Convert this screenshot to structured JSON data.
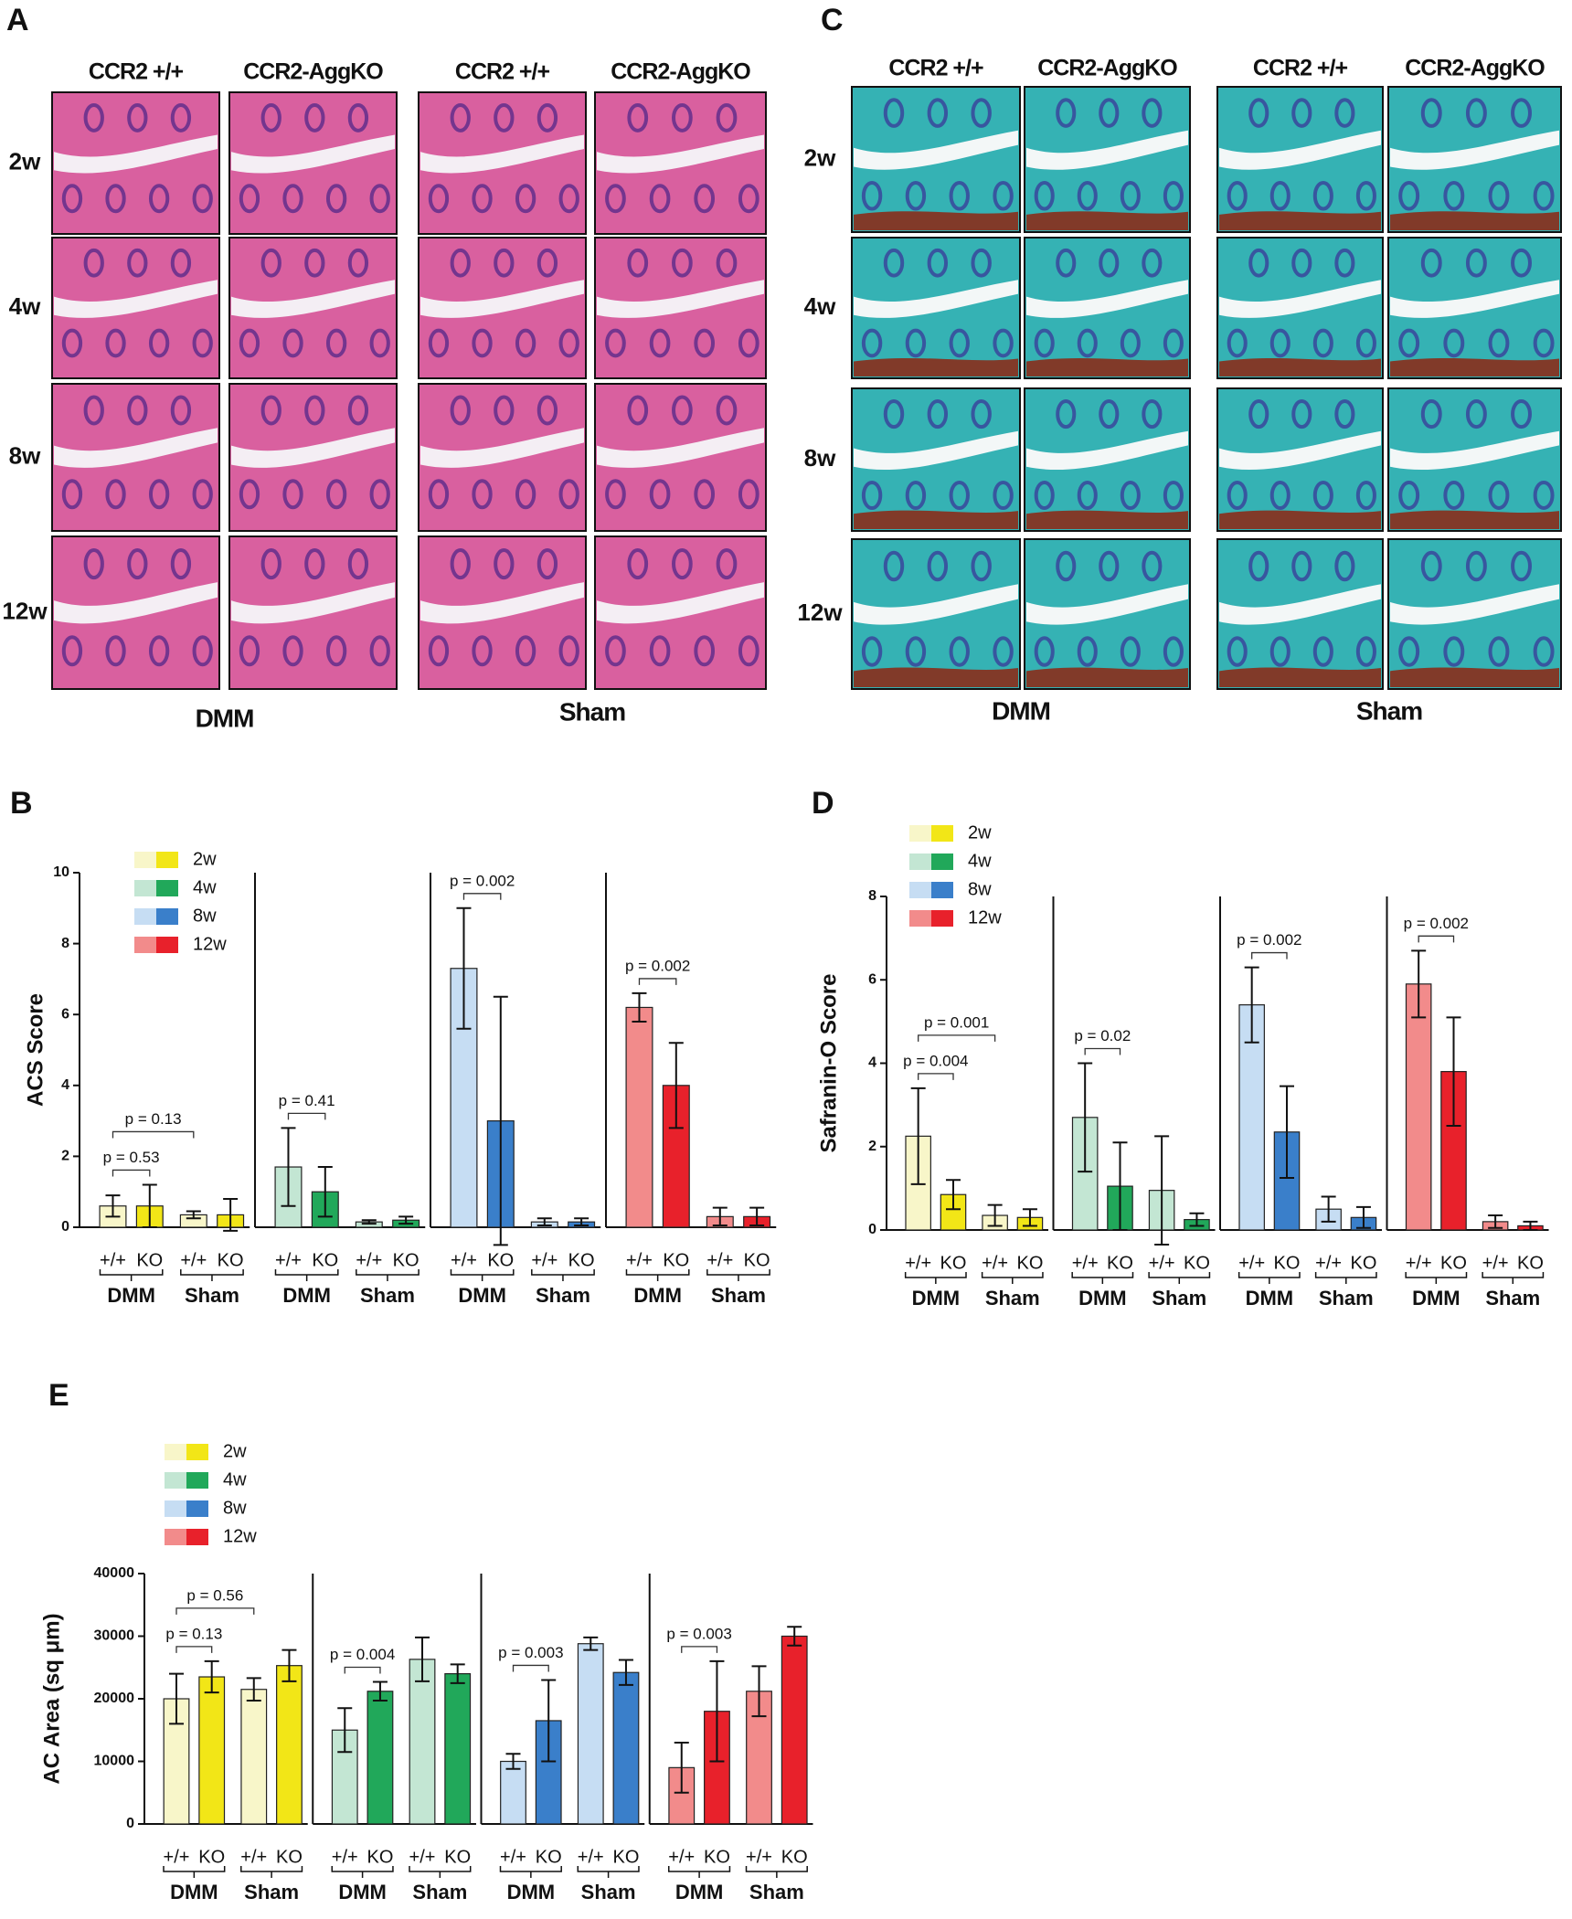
{
  "panels": [
    {
      "panel_label": "A",
      "columns": [
        "CCR2 +/+",
        "CCR2-AggKO",
        "CCR2 +/+",
        "CCR2-AggKO"
      ],
      "rows": [
        "2w",
        "4w",
        "8w",
        "12w"
      ],
      "groups": [
        "DMM",
        "Sham"
      ]
    },
    {
      "panel_label": "C",
      "columns": [
        "CCR2 +/+",
        "CCR2-AggKO",
        "CCR2 +/+",
        "CCR2-AggKO"
      ],
      "rows": [
        "2w",
        "4w",
        "8w",
        "12w"
      ],
      "groups": [
        "DMM",
        "Sham"
      ]
    }
  ],
  "chart_data": [
    {
      "type": "bar",
      "panel_label": "B",
      "ylabel": "ACS Score",
      "ylim": [
        0,
        10
      ],
      "yticks": [
        0,
        2,
        4,
        6,
        8,
        10
      ],
      "categories": [
        "+/+",
        "KO",
        "+/+",
        "KO"
      ],
      "groups": [
        "DMM",
        "Sham"
      ],
      "series": [
        {
          "name": "2w",
          "colors": [
            "#f8f6c9",
            "#f2e617"
          ],
          "values": [
            0.6,
            0.6,
            0.35,
            0.35
          ],
          "errors": [
            0.3,
            0.6,
            0.1,
            0.45
          ]
        },
        {
          "name": "4w",
          "colors": [
            "#c3e6d3",
            "#21a85a"
          ],
          "values": [
            1.7,
            1.0,
            0.15,
            0.2
          ],
          "errors": [
            1.1,
            0.7,
            0.05,
            0.1
          ]
        },
        {
          "name": "8w",
          "colors": [
            "#c6ddf3",
            "#3a7fca"
          ],
          "values": [
            7.3,
            3.0,
            0.15,
            0.15
          ],
          "errors": [
            1.7,
            3.5,
            0.1,
            0.1
          ]
        },
        {
          "name": "12w",
          "colors": [
            "#f28b8b",
            "#e8212b"
          ],
          "values": [
            6.2,
            4.0,
            0.3,
            0.3
          ],
          "errors": [
            0.4,
            1.2,
            0.25,
            0.25
          ]
        }
      ],
      "annotations": [
        "p = 0.53",
        "p = 0.13",
        "p = 0.41",
        "p = 0.002",
        "p = 0.002"
      ]
    },
    {
      "type": "bar",
      "panel_label": "D",
      "ylabel": "Safranin-O Score",
      "ylim": [
        0,
        8
      ],
      "yticks": [
        0,
        2,
        4,
        6,
        8
      ],
      "categories": [
        "+/+",
        "KO",
        "+/+",
        "KO"
      ],
      "groups": [
        "DMM",
        "Sham"
      ],
      "series": [
        {
          "name": "2w",
          "colors": [
            "#f8f6c9",
            "#f2e617"
          ],
          "values": [
            2.25,
            0.85,
            0.35,
            0.3
          ],
          "errors": [
            1.15,
            0.35,
            0.25,
            0.2
          ]
        },
        {
          "name": "4w",
          "colors": [
            "#c3e6d3",
            "#21a85a"
          ],
          "values": [
            2.7,
            1.05,
            0.95,
            0.25
          ],
          "errors": [
            1.3,
            1.05,
            1.3,
            0.15
          ]
        },
        {
          "name": "8w",
          "colors": [
            "#c6ddf3",
            "#3a7fca"
          ],
          "values": [
            5.4,
            2.35,
            0.5,
            0.3
          ],
          "errors": [
            0.9,
            1.1,
            0.3,
            0.25
          ]
        },
        {
          "name": "12w",
          "colors": [
            "#f28b8b",
            "#e8212b"
          ],
          "values": [
            5.9,
            3.8,
            0.2,
            0.1
          ],
          "errors": [
            0.8,
            1.3,
            0.15,
            0.1
          ]
        }
      ],
      "annotations": [
        "p = 0.001",
        "p = 0.004",
        "p = 0.02",
        "p = 0.002",
        "p = 0.002"
      ]
    },
    {
      "type": "bar",
      "panel_label": "E",
      "ylabel": "AC Area (sq μm)",
      "ylim": [
        0,
        40000
      ],
      "yticks": [
        0,
        10000,
        20000,
        30000,
        40000
      ],
      "categories": [
        "+/+",
        "KO",
        "+/+",
        "KO"
      ],
      "groups": [
        "DMM",
        "Sham"
      ],
      "series": [
        {
          "name": "2w",
          "colors": [
            "#f8f6c9",
            "#f2e617"
          ],
          "values": [
            20000,
            23500,
            21500,
            25300
          ],
          "errors": [
            4000,
            2500,
            1800,
            2500
          ]
        },
        {
          "name": "4w",
          "colors": [
            "#c3e6d3",
            "#21a85a"
          ],
          "values": [
            15000,
            21200,
            26300,
            24000
          ],
          "errors": [
            3500,
            1500,
            3500,
            1500
          ]
        },
        {
          "name": "8w",
          "colors": [
            "#c6ddf3",
            "#3a7fca"
          ],
          "values": [
            10000,
            16500,
            28800,
            24200
          ],
          "errors": [
            1200,
            6500,
            1000,
            2000
          ]
        },
        {
          "name": "12w",
          "colors": [
            "#f28b8b",
            "#e8212b"
          ],
          "values": [
            9000,
            18000,
            21200,
            30000
          ],
          "errors": [
            4000,
            8000,
            4000,
            1500
          ]
        }
      ],
      "annotations": [
        "p = 0.56",
        "p = 0.13",
        "p = 0.004",
        "p = 0.003",
        "p = 0.003"
      ]
    }
  ]
}
